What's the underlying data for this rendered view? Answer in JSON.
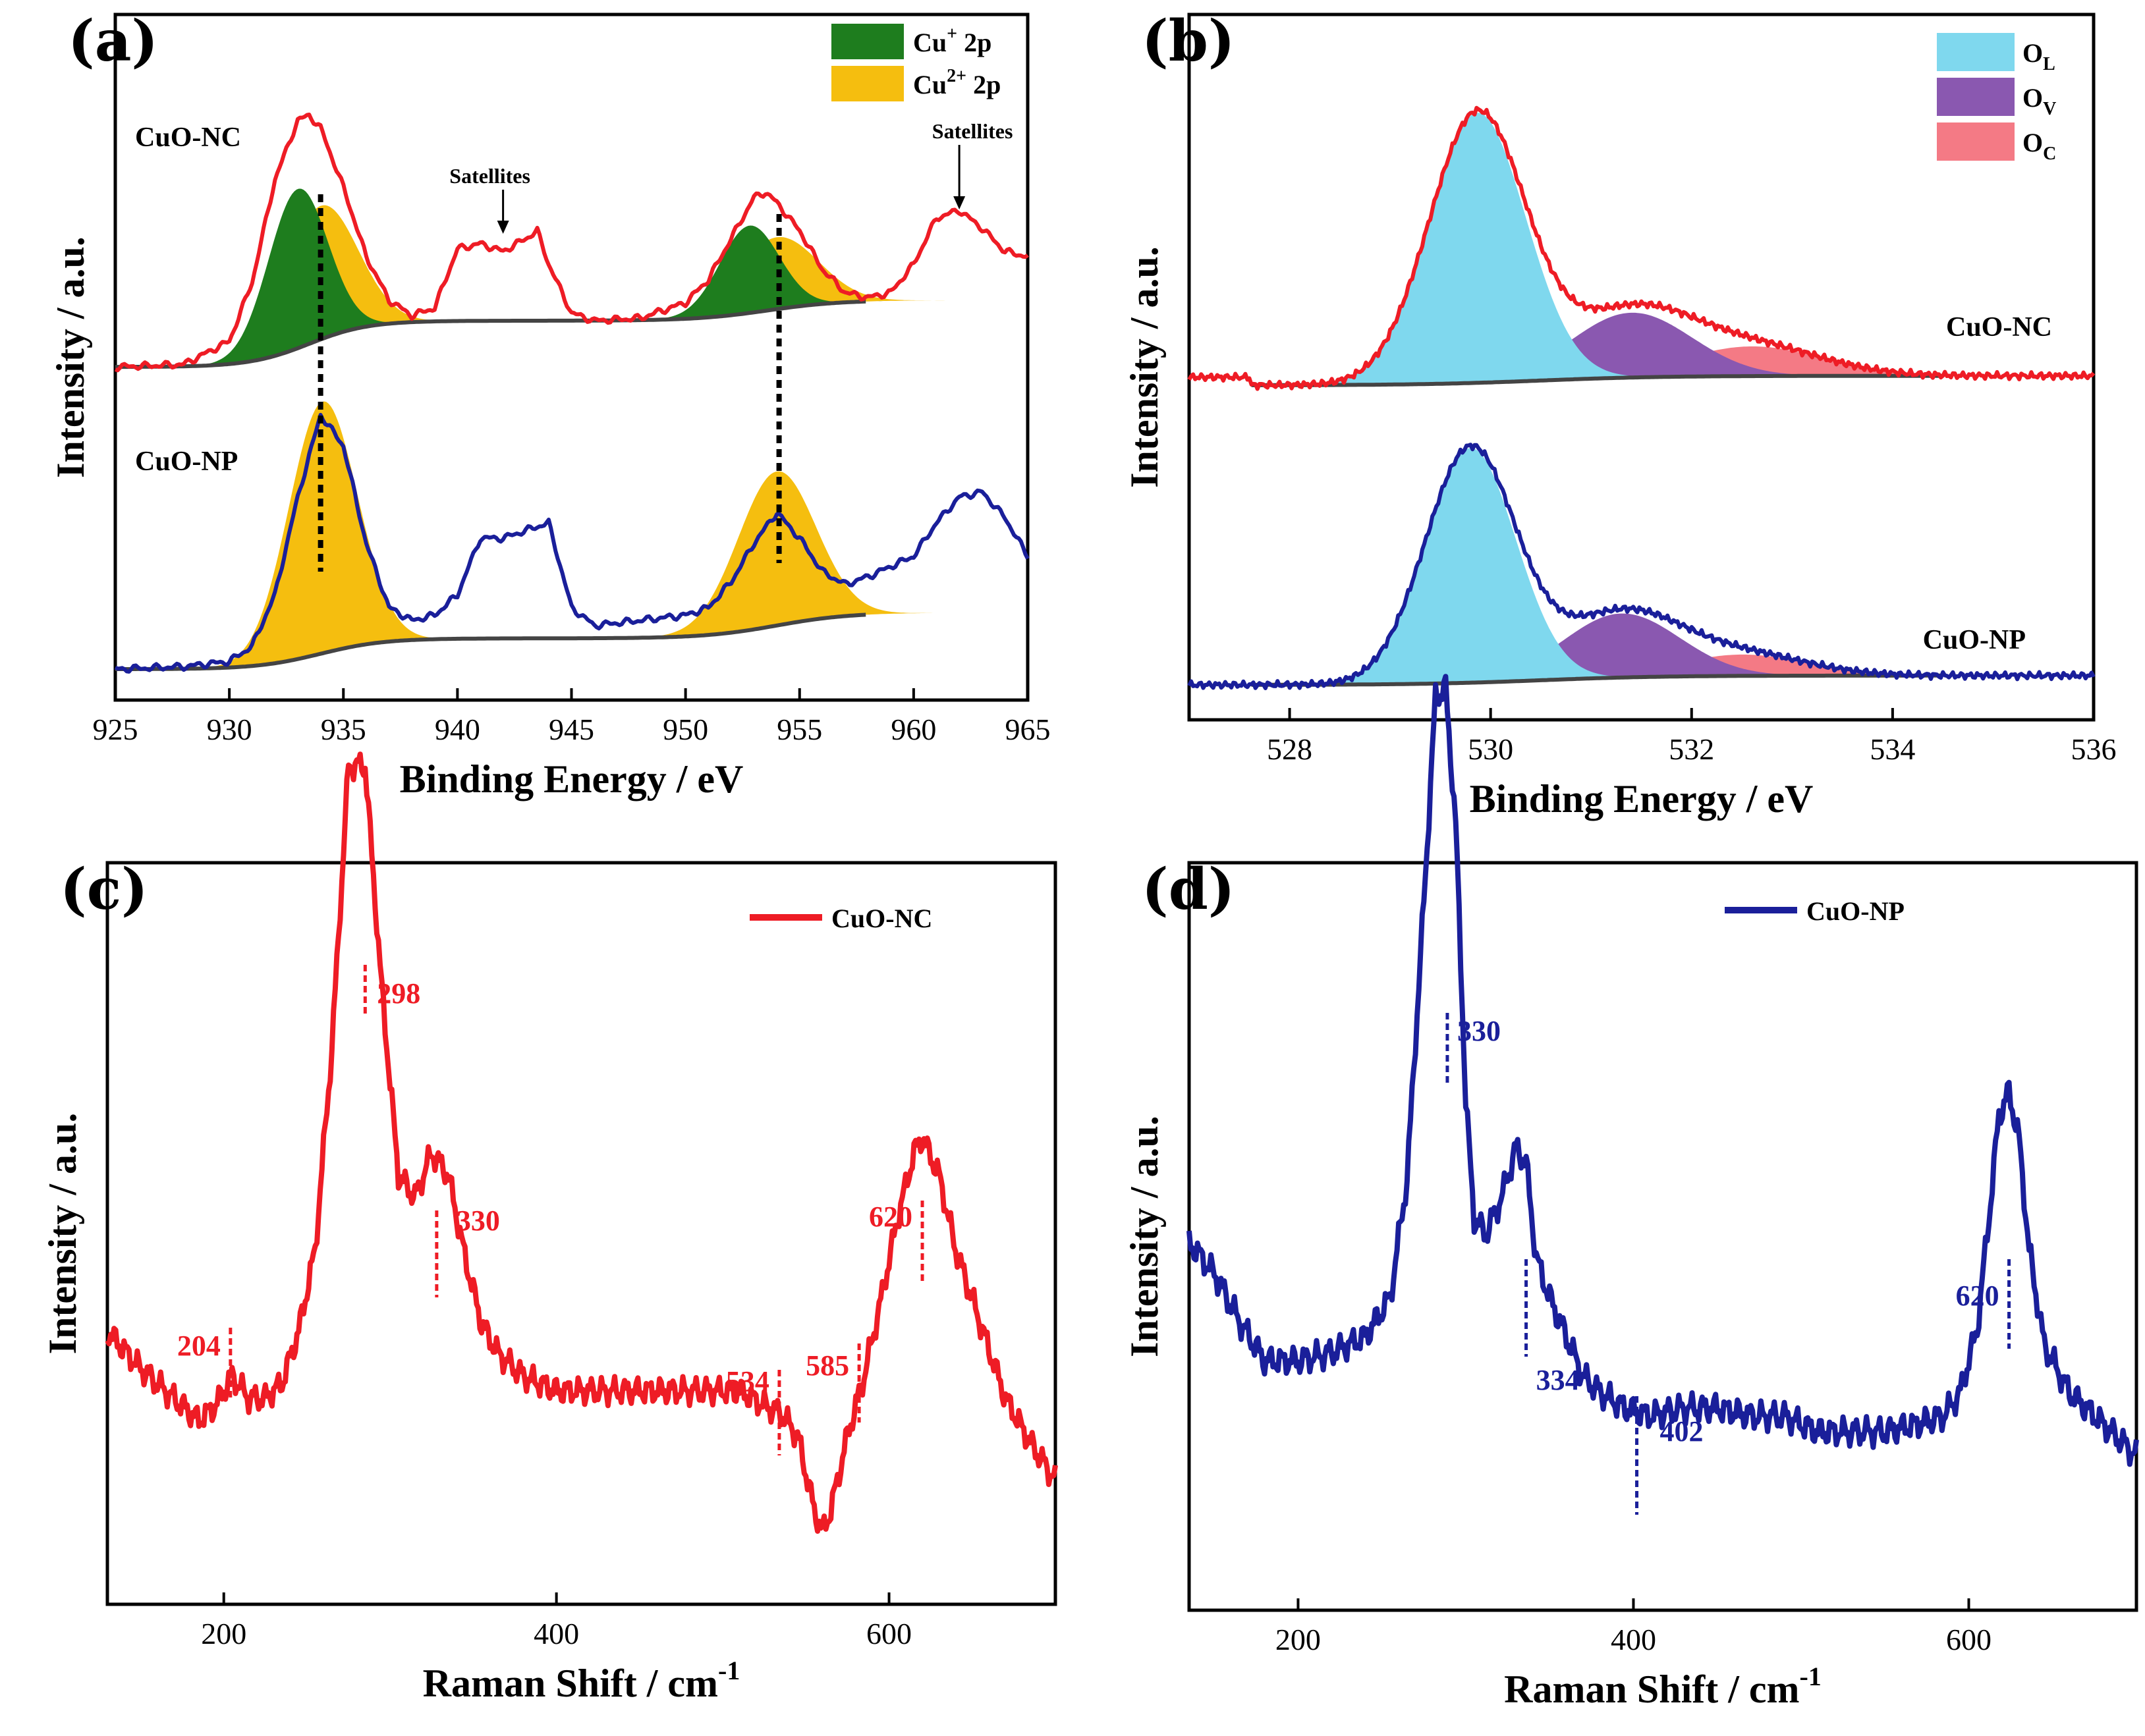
{
  "chart_data": [
    {
      "panel": "(a)",
      "type": "line",
      "xlabel": "Binding Energy / eV",
      "ylabel": "Intensity / a.u.",
      "xlim": [
        925,
        965
      ],
      "xticks": [
        925,
        930,
        935,
        940,
        945,
        950,
        955,
        960,
        965
      ],
      "legend": [
        {
          "label": "Cu",
          "sup": "+",
          "suffix": " 2p",
          "color": "#1e7d1e"
        },
        {
          "label": "Cu",
          "sup": "2+",
          "suffix": " 2p",
          "color": "#f5be0f"
        }
      ],
      "series": [
        {
          "name": "CuO-NC",
          "color": "#ee1c25",
          "offset": 1.0,
          "x": [
            925,
            928,
            930,
            931,
            932,
            933,
            933.5,
            934,
            935,
            936,
            937,
            938,
            939,
            940,
            941,
            942,
            943,
            943.5,
            944,
            945,
            946,
            948,
            950,
            951,
            952,
            953,
            953.5,
            954,
            955,
            956,
            957,
            958,
            959,
            960,
            961,
            962,
            963,
            964,
            965
          ],
          "y": [
            0.02,
            0.03,
            0.12,
            0.35,
            0.75,
            0.98,
            1.0,
            0.95,
            0.72,
            0.45,
            0.28,
            0.22,
            0.25,
            0.48,
            0.5,
            0.47,
            0.52,
            0.55,
            0.42,
            0.23,
            0.2,
            0.21,
            0.27,
            0.36,
            0.52,
            0.68,
            0.7,
            0.66,
            0.55,
            0.4,
            0.31,
            0.29,
            0.31,
            0.42,
            0.6,
            0.63,
            0.56,
            0.47,
            0.45
          ]
        },
        {
          "name": "CuO-NP",
          "color": "#1a1f9a",
          "offset": 0.0,
          "x": [
            925,
            928,
            930,
            931,
            932,
            933,
            934,
            935,
            936,
            937,
            938,
            939,
            940,
            941,
            942,
            943,
            944,
            945,
            946,
            948,
            950,
            951,
            952,
            953,
            954,
            955,
            956,
            957,
            958,
            960,
            961,
            962,
            963,
            964,
            965
          ],
          "y": [
            0.01,
            0.02,
            0.04,
            0.1,
            0.3,
            0.68,
            1.0,
            0.88,
            0.5,
            0.25,
            0.2,
            0.22,
            0.3,
            0.52,
            0.52,
            0.55,
            0.58,
            0.25,
            0.18,
            0.2,
            0.22,
            0.25,
            0.35,
            0.5,
            0.62,
            0.52,
            0.39,
            0.34,
            0.37,
            0.45,
            0.58,
            0.68,
            0.7,
            0.6,
            0.45
          ]
        }
      ],
      "components": [
        {
          "series": "CuO-NC",
          "name": "Cu+ 2p3/2",
          "center": 933.0,
          "height": 0.62,
          "width": 1.3
        },
        {
          "series": "CuO-NC",
          "name": "Cu2+ 2p3/2",
          "center": 934.0,
          "height": 0.52,
          "width": 1.6
        },
        {
          "series": "CuO-NC",
          "name": "Cu+ 2p1/2",
          "center": 952.8,
          "height": 0.34,
          "width": 1.3
        },
        {
          "series": "CuO-NC",
          "name": "Cu2+ 2p1/2",
          "center": 954.0,
          "height": 0.28,
          "width": 1.8
        },
        {
          "series": "CuO-NP",
          "name": "Cu2+ 2p3/2",
          "center": 934.1,
          "height": 0.98,
          "width": 1.5
        },
        {
          "series": "CuO-NP",
          "name": "Cu2+ 2p1/2",
          "center": 954.0,
          "height": 0.6,
          "width": 1.7
        }
      ],
      "annotations": [
        {
          "text": "Satellites",
          "x": 942
        },
        {
          "text": "Satellites",
          "x": 962
        },
        {
          "text": "CuO-NC"
        },
        {
          "text": "CuO-NP"
        }
      ],
      "dashed_lines": [
        934.0,
        954.1
      ]
    },
    {
      "panel": "(b)",
      "type": "line",
      "xlabel": "Binding Energy / eV",
      "ylabel": "Intensity / a.u.",
      "xlim": [
        527,
        536
      ],
      "xticks": [
        528,
        530,
        532,
        534,
        536
      ],
      "legend": [
        {
          "label": "O",
          "sub": "L",
          "color": "#7fd8ee"
        },
        {
          "label": "O",
          "sub": "V",
          "color": "#8a58b0"
        },
        {
          "label": "O",
          "sub": "C",
          "color": "#f47a85"
        }
      ],
      "series": [
        {
          "name": "CuO-NC",
          "color": "#ee1c25",
          "components": [
            {
              "name": "O_L",
              "center": 529.87,
              "height": 1.0,
              "width": 0.48
            },
            {
              "name": "O_V",
              "center": 531.4,
              "height": 0.24,
              "width": 0.6
            },
            {
              "name": "O_C",
              "center": 532.6,
              "height": 0.11,
              "width": 0.7
            }
          ]
        },
        {
          "name": "CuO-NP",
          "color": "#1a1f9a",
          "components": [
            {
              "name": "O_L",
              "center": 529.8,
              "height": 0.88,
              "width": 0.45
            },
            {
              "name": "O_V",
              "center": 531.3,
              "height": 0.24,
              "width": 0.58
            },
            {
              "name": "O_C",
              "center": 532.5,
              "height": 0.08,
              "width": 0.65
            }
          ]
        }
      ],
      "annotations": [
        {
          "text": "CuO-NC"
        },
        {
          "text": "CuO-NP"
        }
      ]
    },
    {
      "panel": "(c)",
      "type": "line",
      "xlabel": "Raman Shift / cm",
      "xlabel_sup": "-1",
      "ylabel": "Intensity / a.u.",
      "xlim": [
        130,
        700
      ],
      "xticks": [
        200,
        400,
        600
      ],
      "legend": [
        {
          "label": "CuO-NC",
          "color": "#ee1c25"
        }
      ],
      "series": [
        {
          "name": "CuO-NC",
          "color": "#ee1c25",
          "x": [
            130,
            150,
            170,
            185,
            195,
            205,
            215,
            225,
            235,
            245,
            255,
            265,
            275,
            285,
            295,
            305,
            315,
            325,
            335,
            345,
            355,
            365,
            380,
            400,
            430,
            460,
            490,
            510,
            525,
            535,
            545,
            555,
            560,
            565,
            575,
            585,
            595,
            605,
            615,
            620,
            630,
            640,
            655,
            670,
            685,
            700
          ],
          "y": [
            0.22,
            0.17,
            0.13,
            0.1,
            0.12,
            0.16,
            0.13,
            0.13,
            0.15,
            0.22,
            0.33,
            0.6,
            0.98,
            0.98,
            0.68,
            0.43,
            0.4,
            0.46,
            0.43,
            0.32,
            0.23,
            0.19,
            0.16,
            0.14,
            0.14,
            0.14,
            0.14,
            0.14,
            0.12,
            0.11,
            0.08,
            -0.02,
            -0.05,
            -0.02,
            0.08,
            0.16,
            0.26,
            0.37,
            0.46,
            0.48,
            0.43,
            0.33,
            0.23,
            0.13,
            0.07,
            0.02
          ]
        }
      ],
      "peak_labels": [
        {
          "text": "204",
          "x": 204
        },
        {
          "text": "298",
          "x": 285
        },
        {
          "text": "330",
          "x": 328
        },
        {
          "text": "534",
          "x": 534
        },
        {
          "text": "585",
          "x": 582
        },
        {
          "text": "620",
          "x": 620
        }
      ]
    },
    {
      "panel": "(d)",
      "type": "line",
      "xlabel": "Raman Shift / cm",
      "xlabel_sup": "-1",
      "ylabel": "Intensity / a.u.",
      "xlim": [
        135,
        700
      ],
      "xticks": [
        200,
        400,
        600
      ],
      "legend": [
        {
          "label": "CuO-NP",
          "color": "#1a1f9a"
        }
      ],
      "series": [
        {
          "name": "CuO-NP",
          "color": "#1a1f9a",
          "x": [
            135,
            150,
            165,
            180,
            200,
            220,
            240,
            255,
            265,
            275,
            282,
            288,
            294,
            300,
            305,
            312,
            322,
            330,
            336,
            342,
            350,
            360,
            370,
            380,
            395,
            410,
            430,
            450,
            470,
            490,
            510,
            530,
            550,
            570,
            585,
            595,
            605,
            612,
            618,
            624,
            630,
            636,
            645,
            660,
            680,
            700
          ],
          "y": [
            0.27,
            0.23,
            0.17,
            0.12,
            0.12,
            0.13,
            0.15,
            0.2,
            0.35,
            0.7,
            0.96,
            0.97,
            0.8,
            0.45,
            0.3,
            0.28,
            0.33,
            0.39,
            0.37,
            0.25,
            0.2,
            0.15,
            0.1,
            0.08,
            0.06,
            0.05,
            0.06,
            0.06,
            0.05,
            0.05,
            0.03,
            0.03,
            0.03,
            0.04,
            0.05,
            0.08,
            0.16,
            0.3,
            0.43,
            0.46,
            0.4,
            0.26,
            0.14,
            0.08,
            0.04,
            0.0
          ]
        }
      ],
      "peak_labels": [
        {
          "text": "330",
          "x": 289
        },
        {
          "text": "334",
          "x": 336
        },
        {
          "text": "402",
          "x": 402
        },
        {
          "text": "620",
          "x": 624
        }
      ]
    }
  ]
}
